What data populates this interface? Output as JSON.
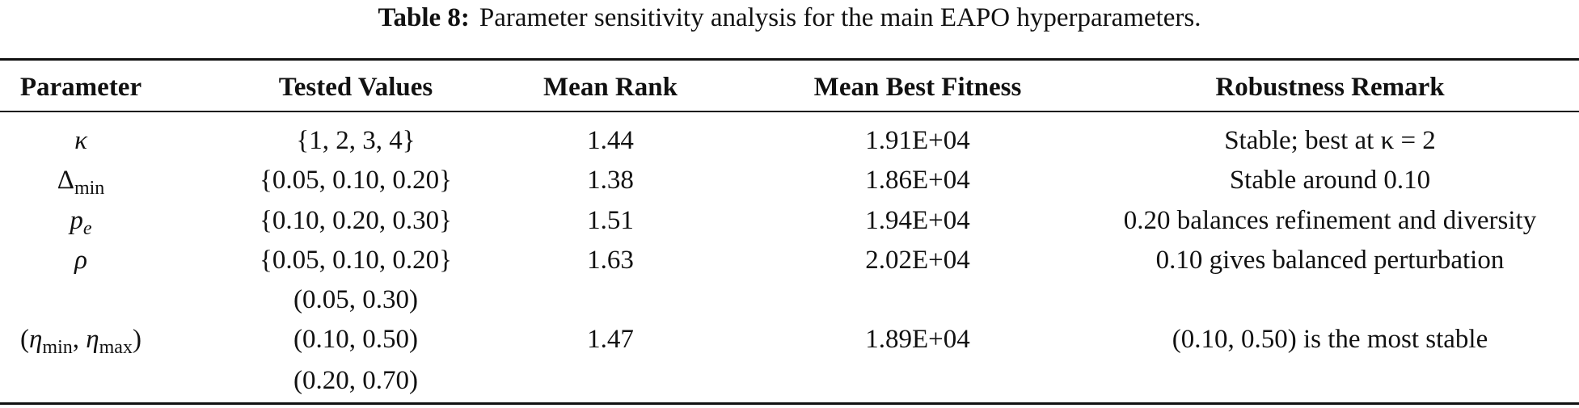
{
  "caption": {
    "label": "Table 8:",
    "text": "Parameter sensitivity analysis for the main EAPO hyperparameters."
  },
  "table": {
    "headers": [
      "Parameter",
      "Tested Values",
      "Mean Rank",
      "Mean Best Fitness",
      "Robustness Remark"
    ],
    "rows": [
      {
        "parameter": {
          "symbol": "κ",
          "subscript": ""
        },
        "tested_values": [
          "{1, 2, 3, 4}"
        ],
        "mean_rank": "1.44",
        "mean_best_fitness": "1.91E+04",
        "remark": "Stable; best at κ = 2"
      },
      {
        "parameter": {
          "symbol": "Δ",
          "subscript": "min"
        },
        "tested_values": [
          "{0.05, 0.10, 0.20}"
        ],
        "mean_rank": "1.38",
        "mean_best_fitness": "1.86E+04",
        "remark": "Stable around 0.10"
      },
      {
        "parameter": {
          "symbol": "p",
          "subscript": "e"
        },
        "tested_values": [
          "{0.10, 0.20, 0.30}"
        ],
        "mean_rank": "1.51",
        "mean_best_fitness": "1.94E+04",
        "remark": "0.20 balances refinement and diversity"
      },
      {
        "parameter": {
          "symbol": "ρ",
          "subscript": ""
        },
        "tested_values": [
          "{0.05, 0.10, 0.20}"
        ],
        "mean_rank": "1.63",
        "mean_best_fitness": "2.02E+04",
        "remark": "0.10 gives balanced perturbation"
      },
      {
        "parameter": {
          "open": "(",
          "eta": "η",
          "sub_min": "min",
          "comma": ", ",
          "sub_max": "max",
          "close": ")"
        },
        "tested_values": [
          "(0.05, 0.30)",
          "(0.10, 0.50)",
          "(0.20, 0.70)"
        ],
        "mean_rank": "1.47",
        "mean_best_fitness": "1.89E+04",
        "remark": "(0.10, 0.50) is the most stable"
      }
    ]
  }
}
